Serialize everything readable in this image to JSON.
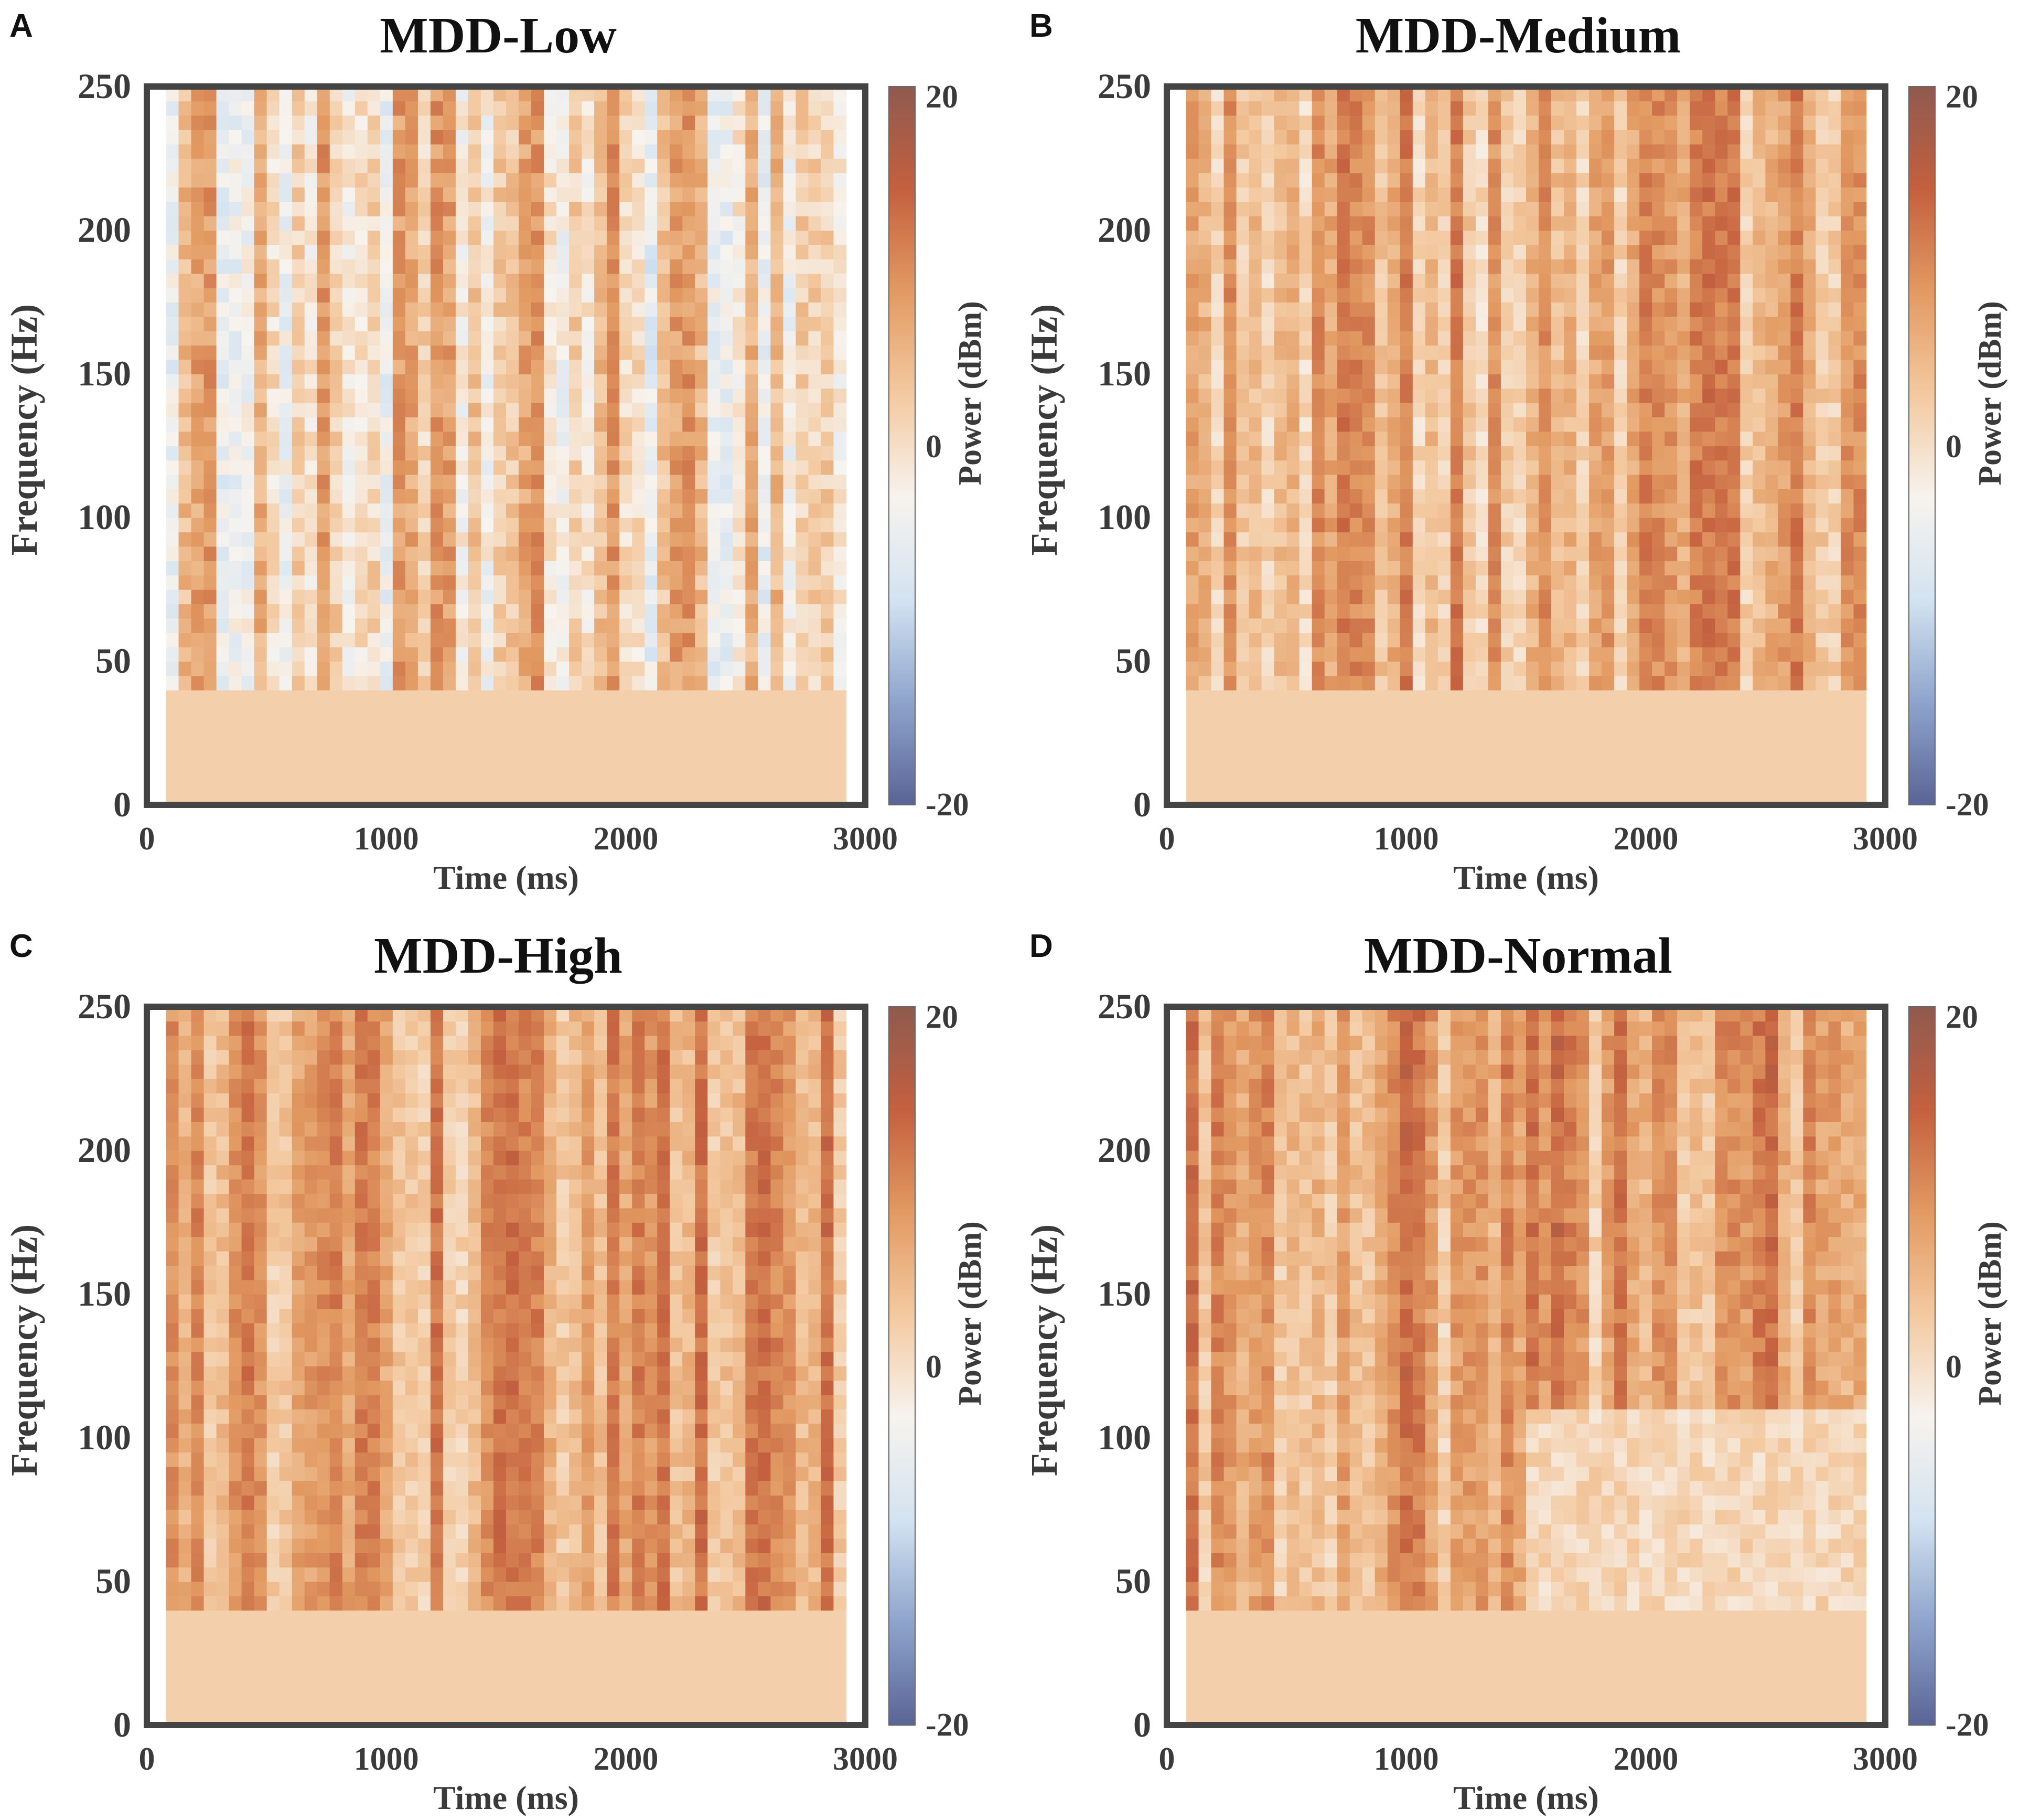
{
  "chart_data": [
    {
      "type": "heatmap",
      "panel_letter": "A",
      "title": "MDD-Low",
      "xlabel": "Time (ms)",
      "ylabel": "Frequency (Hz)",
      "colorbar_label": "Power (dBm)",
      "xlim": [
        0,
        3000
      ],
      "ylim": [
        0,
        250
      ],
      "clim": [
        -20,
        20
      ],
      "x_ticks": [
        0,
        1000,
        2000,
        3000
      ],
      "y_ticks": [
        0,
        50,
        100,
        150,
        200,
        250
      ],
      "colorbar_ticks": [
        -20,
        0,
        20
      ],
      "profile": {
        "mean_high": 1.5,
        "variation": 7.5,
        "low_band_value": 2,
        "onset_hz": 38,
        "high_end_boost": 0
      }
    },
    {
      "type": "heatmap",
      "panel_letter": "B",
      "title": "MDD-Medium",
      "xlabel": "Time (ms)",
      "ylabel": "Frequency (Hz)",
      "colorbar_label": "Power (dBm)",
      "xlim": [
        0,
        3000
      ],
      "ylim": [
        0,
        250
      ],
      "clim": [
        -20,
        20
      ],
      "x_ticks": [
        0,
        1000,
        2000,
        3000
      ],
      "y_ticks": [
        0,
        50,
        100,
        150,
        200,
        250
      ],
      "colorbar_ticks": [
        -20,
        0,
        20
      ],
      "profile": {
        "mean_high": 6,
        "variation": 6,
        "low_band_value": 2,
        "onset_hz": 38,
        "high_end_boost": 0
      }
    },
    {
      "type": "heatmap",
      "panel_letter": "C",
      "title": "MDD-High",
      "xlabel": "Time (ms)",
      "ylabel": "Frequency (Hz)",
      "colorbar_label": "Power (dBm)",
      "xlim": [
        0,
        3000
      ],
      "ylim": [
        0,
        250
      ],
      "clim": [
        -20,
        20
      ],
      "x_ticks": [
        0,
        1000,
        2000,
        3000
      ],
      "y_ticks": [
        0,
        50,
        100,
        150,
        200,
        250
      ],
      "colorbar_ticks": [
        -20,
        0,
        20
      ],
      "profile": {
        "mean_high": 7,
        "variation": 5.5,
        "low_band_value": 2,
        "onset_hz": 38,
        "high_end_boost": 0
      }
    },
    {
      "type": "heatmap",
      "panel_letter": "D",
      "title": "MDD-Normal",
      "xlabel": "Time (ms)",
      "ylabel": "Frequency (Hz)",
      "colorbar_label": "Power (dBm)",
      "xlim": [
        0,
        3000
      ],
      "ylim": [
        0,
        250
      ],
      "clim": [
        -20,
        20
      ],
      "x_ticks": [
        0,
        1000,
        2000,
        3000
      ],
      "y_ticks": [
        0,
        50,
        100,
        150,
        200,
        250
      ],
      "colorbar_ticks": [
        -20,
        0,
        20
      ],
      "profile": {
        "mean_high": 6,
        "variation": 6,
        "low_band_value": 2,
        "onset_hz": 38,
        "high_end_boost": 2,
        "low_power_region": {
          "time_from": 1500,
          "freq_to": 110,
          "value": 1
        }
      }
    }
  ],
  "colormap": [
    "#5a6496",
    "#8ea4cc",
    "#d3e3f1",
    "#f7f3ee",
    "#f3c9a0",
    "#e29a62",
    "#c4603f",
    "#8f5a4f"
  ]
}
